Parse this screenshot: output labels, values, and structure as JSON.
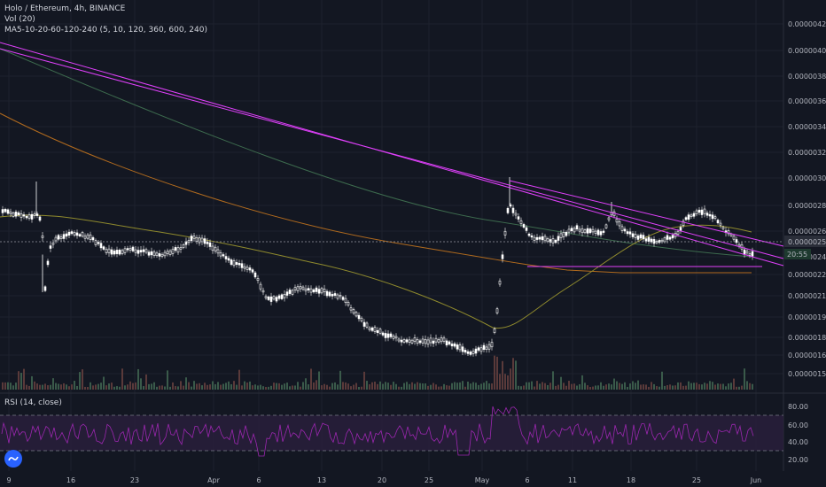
{
  "legend": {
    "symbol": "Holo / Ethereum, 4h, BINANCE",
    "volume": "Vol (20)",
    "ma": "MA5-10-20-60-120-240 (5, 10, 120, 360, 600, 240)",
    "rsi": "RSI (14, close)"
  },
  "price_axis": {
    "ticks": [
      "0.00000420",
      "0.00000400",
      "0.00000380",
      "0.00000360",
      "0.00000340",
      "0.00000320",
      "0.00000300",
      "0.00000280",
      "0.00000260",
      "0.00000240",
      "0.00000225",
      "0.00000210",
      "0.00000195",
      "0.00000180",
      "0.00000166",
      "0.00000152"
    ],
    "current_price": "0.00000252",
    "countdown": "20:55"
  },
  "rsi_axis": {
    "ticks": [
      "80.00",
      "60.00",
      "40.00",
      "20.00"
    ]
  },
  "time_axis": {
    "ticks": [
      "9",
      "16",
      "23",
      "Apr",
      "6",
      "13",
      "20",
      "25",
      "May",
      "6",
      "11",
      "18",
      "25",
      "Jun"
    ]
  },
  "colors": {
    "background": "#131722",
    "trendline": "#e040fb",
    "candle": "#ffffff",
    "rsi_line": "#9c27b0",
    "rsi_band": "#2a1f3d",
    "ma_green": "#3d6b4e",
    "ma_orange": "#b06a1e",
    "ma_yellow": "#8f8a2d"
  }
}
